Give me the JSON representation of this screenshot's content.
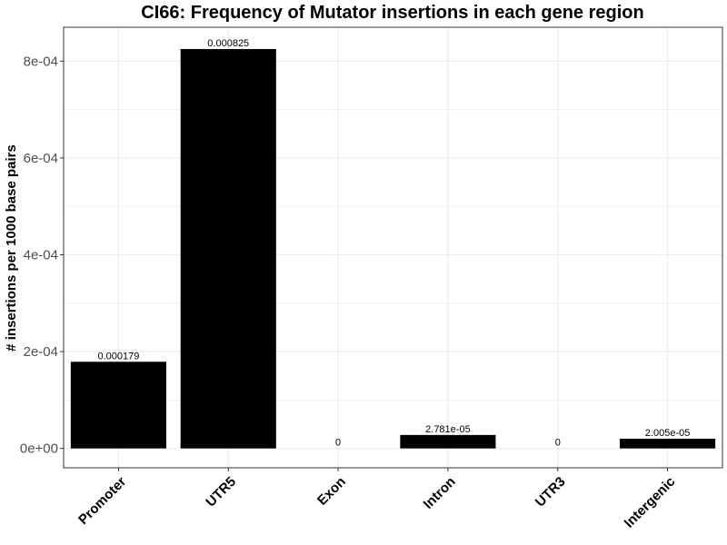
{
  "chart_data": {
    "type": "bar",
    "title": "CI66: Frequency of Mutator insertions in each gene region",
    "xlabel": "",
    "ylabel": "# insertions per 1000 base pairs",
    "categories": [
      "Promoter",
      "UTR5",
      "Exon",
      "Intron",
      "UTR3",
      "Intergenic"
    ],
    "values": [
      0.000179,
      0.000825,
      0,
      2.781e-05,
      0,
      2.005e-05
    ],
    "data_labels": [
      "0.000179",
      "0.000825",
      "0",
      "2.781e-05",
      "0",
      "2.005e-05"
    ],
    "ylim": [
      -4e-05,
      0.00087
    ],
    "yticks": [
      0,
      0.0002,
      0.0004,
      0.0006,
      0.0008
    ],
    "ytick_labels": [
      "0e+00",
      "2e-04",
      "4e-04",
      "6e-04",
      "8e-04"
    ],
    "grid": true,
    "legend": "none",
    "bar_color": "#000000",
    "grid_color": "#ebebeb",
    "panel_border_color": "#333333"
  }
}
